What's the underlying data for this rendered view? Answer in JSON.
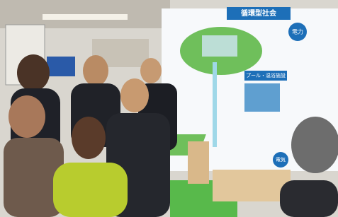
{
  "signs": {
    "title": "循環型社会",
    "labels": [
      "電力",
      "プール・温浴施設",
      "電気"
    ]
  }
}
